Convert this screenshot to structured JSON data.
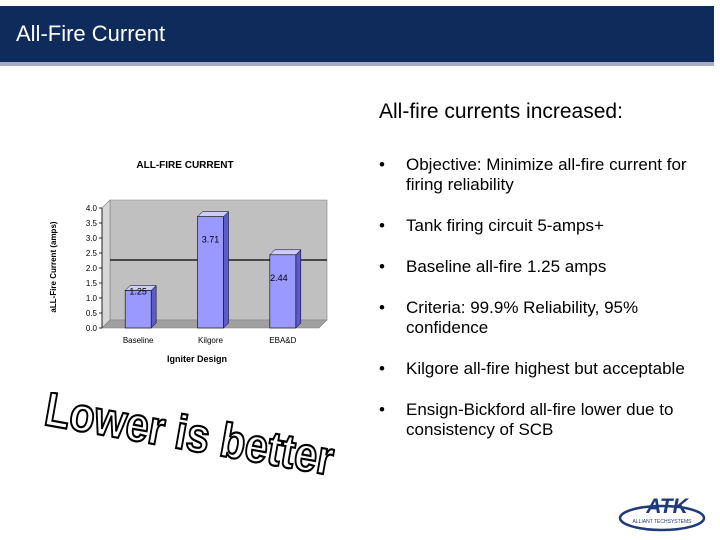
{
  "slide": {
    "title": "All-Fire Current",
    "heading": "All-fire currents increased:",
    "bullets": [
      "Objective: Minimize all-fire current for firing reliability",
      "Tank firing circuit 5-amps+",
      "Baseline all-fire 1.25 amps",
      "Criteria: 99.9% Reliability, 95% confidence",
      "Kilgore all-fire highest but acceptable",
      "Ensign-Bickford all-fire lower due to consistency of SCB"
    ],
    "slogan": "Lower is better",
    "logo_text": "ATK",
    "logo_subtext": "ALLIANT TECHSYSTEMS"
  },
  "colors": {
    "title_bar": "#0e2b5c",
    "bar_fill": "#9999ff",
    "plot_bg": "#c0c0c0",
    "logo_blue": "#1e3a78"
  },
  "chart_data": {
    "type": "bar",
    "title": "ALL-FIRE CURRENT",
    "xlabel": "Igniter Design",
    "ylabel": "aLL-Fire Current (amps)",
    "categories": [
      "Baseline",
      "Kilgore",
      "EBA&D"
    ],
    "values": [
      1.25,
      3.71,
      2.44
    ],
    "data_labels": [
      "1.25",
      "3.71",
      "2.44"
    ],
    "reference_line": 2.0,
    "ylim": [
      0,
      4.0
    ],
    "yticks": [
      "0.0",
      "0.5",
      "1.0",
      "1.5",
      "2.0",
      "2.5",
      "3.0",
      "3.5",
      "4.0"
    ],
    "grid": false,
    "legend": "none"
  }
}
